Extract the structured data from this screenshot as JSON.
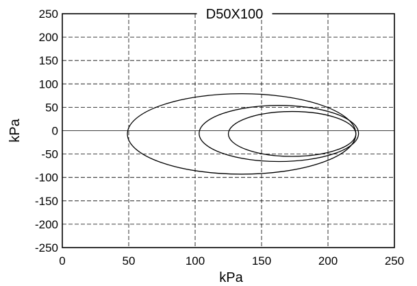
{
  "chart_data": {
    "type": "line",
    "title": "D50X100",
    "xlabel": "kPa",
    "ylabel": "kPa",
    "xlim": [
      0,
      250
    ],
    "ylim": [
      -250,
      250
    ],
    "xticks": [
      0,
      50,
      100,
      150,
      200,
      250
    ],
    "yticks": [
      250,
      200,
      150,
      100,
      50,
      0,
      -50,
      -100,
      -150,
      -200,
      -250
    ],
    "grid": true,
    "series": [
      {
        "shape": "circle",
        "center_x": 135,
        "center_y": -7,
        "radius": 86
      },
      {
        "shape": "circle",
        "center_x": 163,
        "center_y": -6,
        "radius": 60
      },
      {
        "shape": "circle",
        "center_x": 173,
        "center_y": -7,
        "radius": 48
      }
    ],
    "colors": {
      "line": "#000000",
      "background": "#ffffff"
    }
  }
}
